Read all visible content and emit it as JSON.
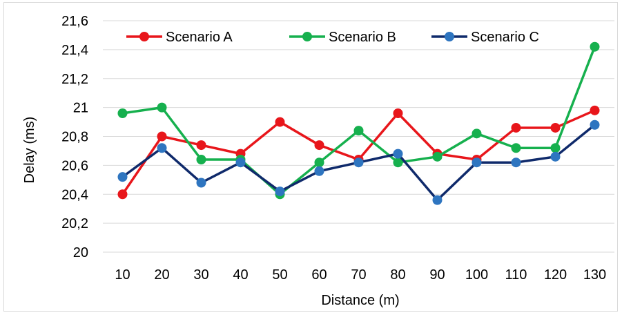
{
  "chart_data": {
    "type": "line",
    "xlabel": "Distance (m)",
    "ylabel": "Delay (ms)",
    "categories": [
      "10",
      "20",
      "30",
      "40",
      "50",
      "60",
      "70",
      "80",
      "90",
      "100",
      "110",
      "120",
      "130"
    ],
    "ylim": [
      20,
      21.6
    ],
    "yticks": [
      "20",
      "20,2",
      "20,4",
      "20,6",
      "20,8",
      "21",
      "21,2",
      "21,4",
      "21,6"
    ],
    "grid": "horizontal",
    "legend_position": "top-left",
    "series": [
      {
        "name": "Scenario A",
        "color": "#e8161b",
        "values": [
          20.4,
          20.8,
          20.74,
          20.68,
          20.9,
          20.74,
          20.64,
          20.96,
          20.68,
          20.64,
          20.86,
          20.86,
          20.98
        ]
      },
      {
        "name": "Scenario B",
        "color": "#16b04e",
        "values": [
          20.96,
          21.0,
          20.64,
          20.64,
          20.4,
          20.62,
          20.84,
          20.62,
          20.66,
          20.82,
          20.72,
          20.72,
          21.42
        ]
      },
      {
        "name": "Scenario C",
        "color": "#0f2a6b",
        "marker_color": "#2e75c0",
        "values": [
          20.52,
          20.72,
          20.48,
          20.62,
          20.42,
          20.56,
          20.62,
          20.68,
          20.36,
          20.62,
          20.62,
          20.66,
          20.88
        ]
      }
    ]
  }
}
